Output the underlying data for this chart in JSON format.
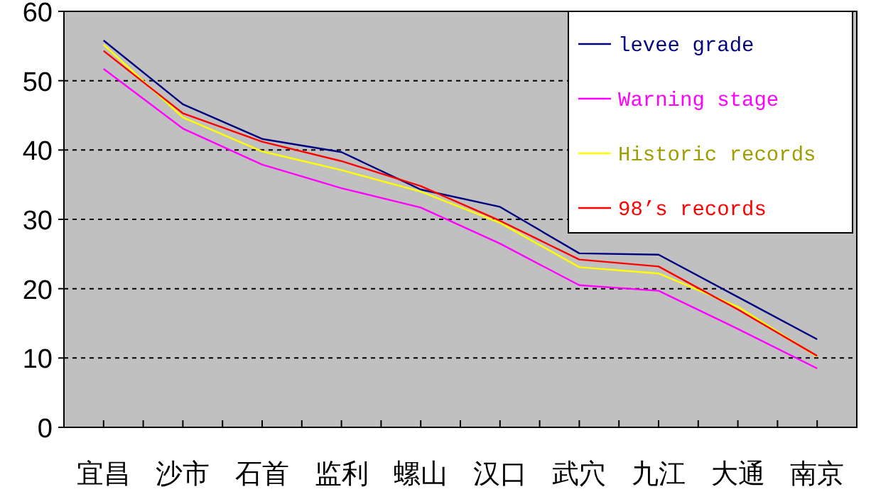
{
  "chart_data": {
    "type": "line",
    "categories": [
      "宜昌",
      "沙市",
      "石首",
      "监利",
      "螺山",
      "汉口",
      "武穴",
      "九江",
      "大通",
      "南京"
    ],
    "series": [
      {
        "name": "levee grade",
        "color": "#000080",
        "values": [
          55.8,
          46.6,
          41.6,
          39.7,
          34.3,
          31.8,
          25.1,
          24.9,
          18.8,
          12.7
        ]
      },
      {
        "name": "Warning stage",
        "color": "#ff00ff",
        "values": [
          51.7,
          43.1,
          37.9,
          34.5,
          31.7,
          26.5,
          20.5,
          19.7,
          14.2,
          8.5
        ]
      },
      {
        "name": "Historic records",
        "color": "#ffff00",
        "values": [
          55.2,
          44.7,
          39.8,
          37.1,
          34.0,
          29.5,
          23.1,
          22.2,
          17.4,
          10.2
        ]
      },
      {
        "name": "98’s records",
        "color": "#ff0000",
        "values": [
          54.3,
          45.3,
          41.2,
          38.4,
          34.8,
          29.8,
          24.2,
          23.2,
          17.0,
          10.3
        ]
      }
    ],
    "ylim": [
      0,
      60
    ],
    "yticks": [
      0,
      10,
      20,
      30,
      40,
      50,
      60
    ],
    "grid": "y",
    "legend": "top right",
    "marker": "none",
    "line_style": "solid"
  }
}
